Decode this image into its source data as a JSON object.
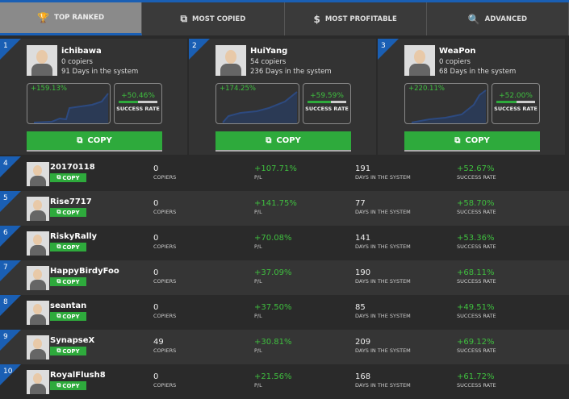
{
  "tabs": [
    {
      "label": "TOP RANKED",
      "icon": "trophy-icon",
      "active": true
    },
    {
      "label": "MOST COPIED",
      "icon": "copy-icon"
    },
    {
      "label": "MOST PROFITABLE",
      "icon": "dollar-icon"
    },
    {
      "label": "ADVANCED",
      "icon": "search-icon"
    }
  ],
  "labels": {
    "copy": "COPY",
    "success_rate": "SUCCESS RATE",
    "copiers": "COPIERS",
    "pl": "P/L",
    "days": "DAYS IN THE SYSTEM"
  },
  "colors": {
    "accent": "#1a5fb4",
    "green": "#2eaa3c"
  },
  "top": [
    {
      "rank": "1",
      "name": "ichibawa",
      "copiers": "0 copiers",
      "days": "91 Days in the system",
      "pl": "+159.13%",
      "success": "+50.46%",
      "success_pct": 50.46
    },
    {
      "rank": "2",
      "name": "HuiYang",
      "copiers": "54 copiers",
      "days": "236 Days in the system",
      "pl": "+174.25%",
      "success": "+59.59%",
      "success_pct": 59.59
    },
    {
      "rank": "3",
      "name": "WeaPon",
      "copiers": "0 copiers",
      "days": "68 Days in the system",
      "pl": "+220.11%",
      "success": "+52.00%",
      "success_pct": 52.0
    }
  ],
  "rows": [
    {
      "rank": "4",
      "name": "20170118",
      "copiers": "0",
      "pl": "+107.71%",
      "days": "191",
      "success": "+52.67%"
    },
    {
      "rank": "5",
      "name": "Rise7717",
      "copiers": "0",
      "pl": "+141.75%",
      "days": "77",
      "success": "+58.70%"
    },
    {
      "rank": "6",
      "name": "RiskyRally",
      "copiers": "0",
      "pl": "+70.08%",
      "days": "141",
      "success": "+53.36%"
    },
    {
      "rank": "7",
      "name": "HappyBirdyFoo",
      "copiers": "0",
      "pl": "+37.09%",
      "days": "190",
      "success": "+68.11%"
    },
    {
      "rank": "8",
      "name": "seantan",
      "copiers": "0",
      "pl": "+37.50%",
      "days": "85",
      "success": "+49.51%"
    },
    {
      "rank": "9",
      "name": "SynapseX",
      "copiers": "49",
      "pl": "+30.81%",
      "days": "209",
      "success": "+69.12%"
    },
    {
      "rank": "10",
      "name": "RoyalFlush8",
      "copiers": "0",
      "pl": "+21.56%",
      "days": "168",
      "success": "+61.72%"
    }
  ]
}
